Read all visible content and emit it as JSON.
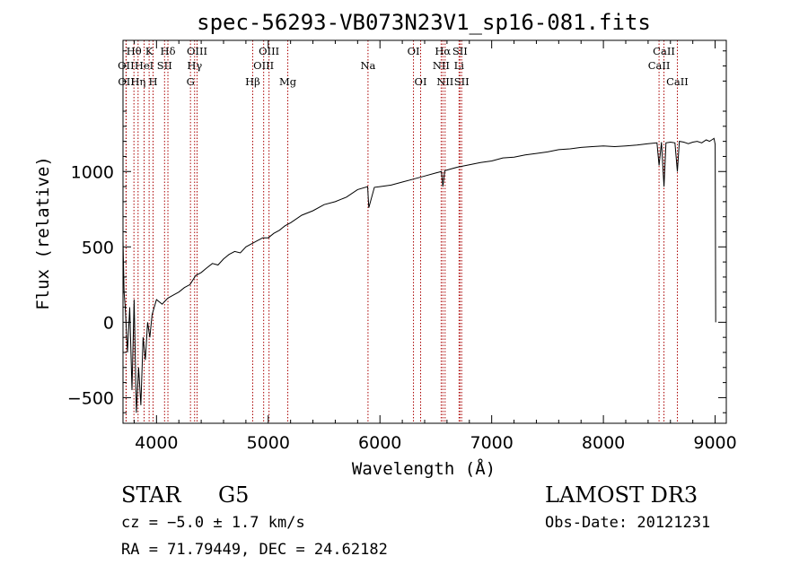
{
  "chart_data": {
    "type": "line",
    "title": "spec-56293-VB073N23V1_sp16-081.fits",
    "xlabel": "Wavelength (Å)",
    "ylabel": "Flux (relative)",
    "xlim": [
      3700,
      9100
    ],
    "ylim": [
      -670,
      1870
    ],
    "grid": false,
    "x_ticks": [
      4000,
      5000,
      6000,
      7000,
      8000,
      9000
    ],
    "x_tick_labels": [
      "4000",
      "5000",
      "6000",
      "7000",
      "8000",
      "9000"
    ],
    "y_ticks": [
      -500,
      0,
      500,
      1000
    ],
    "y_tick_labels": [
      "−500",
      "0",
      "500",
      "1000"
    ],
    "series": [
      {
        "color": "#000000",
        "x": [
          3700,
          3710,
          3720,
          3740,
          3760,
          3780,
          3800,
          3820,
          3840,
          3860,
          3880,
          3900,
          3920,
          3940,
          3960,
          3980,
          4000,
          4050,
          4100,
          4150,
          4200,
          4250,
          4300,
          4350,
          4400,
          4450,
          4500,
          4550,
          4600,
          4650,
          4700,
          4750,
          4800,
          4850,
          4900,
          4950,
          5000,
          5050,
          5100,
          5150,
          5200,
          5300,
          5400,
          5500,
          5600,
          5700,
          5800,
          5890,
          5900,
          5950,
          6000,
          6100,
          6200,
          6300,
          6400,
          6500,
          6550,
          6563,
          6580,
          6600,
          6650,
          6700,
          6800,
          6900,
          7000,
          7100,
          7200,
          7300,
          7400,
          7500,
          7600,
          7700,
          7800,
          7900,
          8000,
          8100,
          8200,
          8300,
          8400,
          8480,
          8498,
          8520,
          8542,
          8560,
          8600,
          8640,
          8662,
          8680,
          8720,
          8760,
          8800,
          8840,
          8880,
          8920,
          8950,
          8970,
          8990,
          9000,
          9005
        ],
        "y": [
          550,
          200,
          100,
          -200,
          100,
          -450,
          150,
          -600,
          -300,
          -550,
          -100,
          -250,
          0,
          -100,
          50,
          100,
          150,
          120,
          160,
          180,
          200,
          230,
          250,
          310,
          330,
          360,
          390,
          380,
          420,
          450,
          470,
          460,
          500,
          520,
          540,
          560,
          560,
          590,
          610,
          640,
          660,
          710,
          740,
          780,
          800,
          830,
          880,
          900,
          760,
          895,
          900,
          910,
          930,
          950,
          970,
          990,
          1000,
          900,
          1005,
          1010,
          1020,
          1030,
          1045,
          1060,
          1070,
          1090,
          1095,
          1110,
          1120,
          1130,
          1145,
          1150,
          1160,
          1165,
          1170,
          1165,
          1170,
          1175,
          1185,
          1190,
          1040,
          1195,
          900,
          1190,
          1195,
          1190,
          1000,
          1200,
          1195,
          1185,
          1195,
          1200,
          1190,
          1210,
          1200,
          1210,
          1220,
          1180,
          0
        ]
      }
    ],
    "line_markers": [
      {
        "label": "Hθ",
        "wavelength": 3798,
        "row": 0
      },
      {
        "label": "OII",
        "wavelength": 3727,
        "row": 1
      },
      {
        "label": "OII",
        "wavelength": 3729,
        "row": 2
      },
      {
        "label": "Hη",
        "wavelength": 3835,
        "row": 2
      },
      {
        "label": "HeI",
        "wavelength": 3889,
        "row": 1
      },
      {
        "label": "K",
        "wavelength": 3934,
        "row": 0
      },
      {
        "label": "H",
        "wavelength": 3969,
        "row": 2
      },
      {
        "label": "SII",
        "wavelength": 4072,
        "row": 1
      },
      {
        "label": "Hδ",
        "wavelength": 4102,
        "row": 0
      },
      {
        "label": "G",
        "wavelength": 4304,
        "row": 2
      },
      {
        "label": "Hγ",
        "wavelength": 4341,
        "row": 1
      },
      {
        "label": "OIII",
        "wavelength": 4363,
        "row": 0
      },
      {
        "label": "Hβ",
        "wavelength": 4861,
        "row": 2
      },
      {
        "label": "OIII",
        "wavelength": 4959,
        "row": 1
      },
      {
        "label": "OIII",
        "wavelength": 5007,
        "row": 0
      },
      {
        "label": "Mg",
        "wavelength": 5175,
        "row": 2
      },
      {
        "label": "Na",
        "wavelength": 5893,
        "row": 1
      },
      {
        "label": "OI",
        "wavelength": 6300,
        "row": 0
      },
      {
        "label": "OI",
        "wavelength": 6364,
        "row": 2
      },
      {
        "label": "NII",
        "wavelength": 6548,
        "row": 1
      },
      {
        "label": "Hα",
        "wavelength": 6563,
        "row": 0
      },
      {
        "label": "NII",
        "wavelength": 6583,
        "row": 2
      },
      {
        "label": "Li",
        "wavelength": 6708,
        "row": 1
      },
      {
        "label": "SII",
        "wavelength": 6716,
        "row": 0
      },
      {
        "label": "SII",
        "wavelength": 6731,
        "row": 2
      },
      {
        "label": "CaII",
        "wavelength": 8498,
        "row": 1
      },
      {
        "label": "CaII",
        "wavelength": 8542,
        "row": 0
      },
      {
        "label": "CaII",
        "wavelength": 8662,
        "row": 2
      }
    ]
  },
  "info": {
    "class_label": "STAR",
    "subclass_label": "G5",
    "survey_label": "LAMOST DR3",
    "cz_text": "cz = −5.0 ± 1.7 km/s",
    "obs_date_text": "Obs-Date: 20121231",
    "radec_text": "RA =  71.79449, DEC =  24.62182"
  },
  "colors": {
    "spectrum": "#000000",
    "marker_lines": "#aa0000",
    "axes": "#000000"
  }
}
